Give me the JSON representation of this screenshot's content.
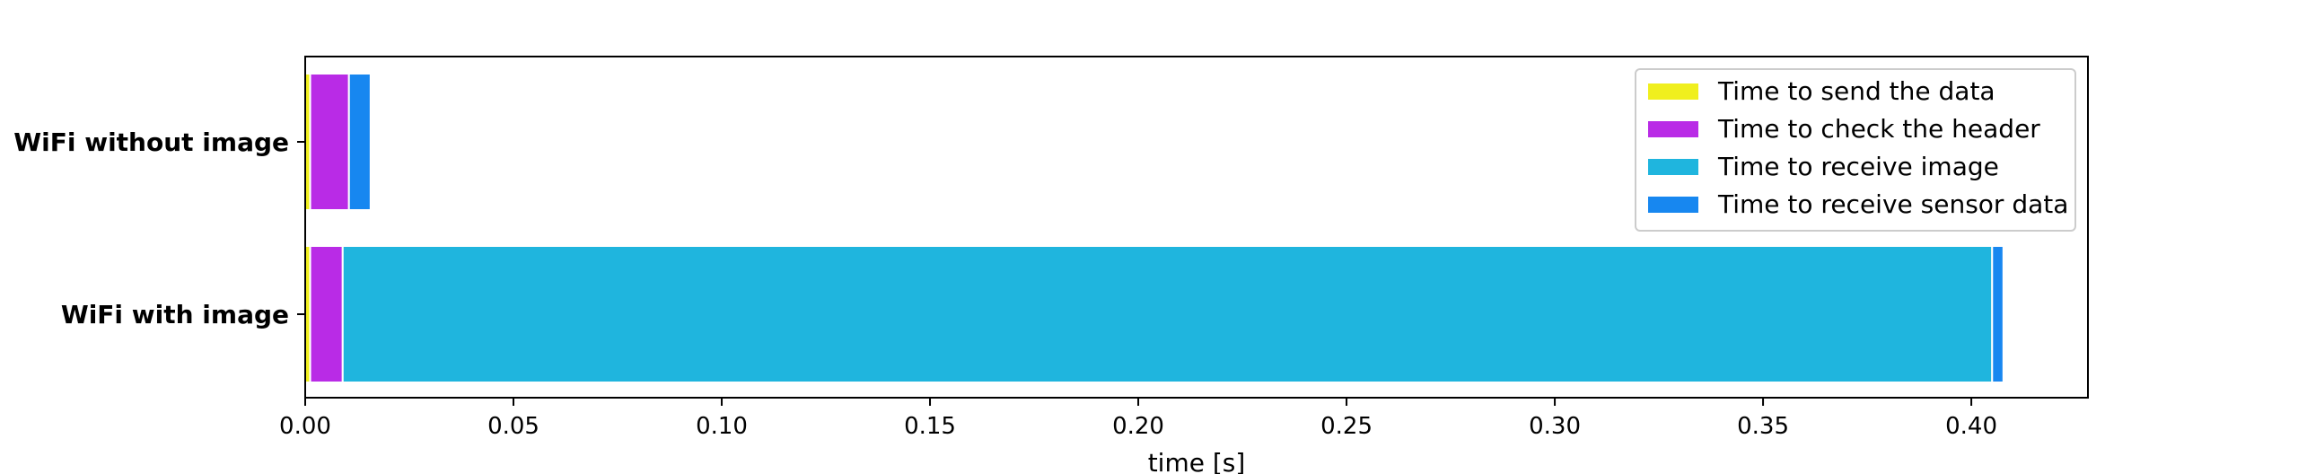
{
  "chart_data": {
    "type": "bar",
    "orientation": "horizontal",
    "stacked": true,
    "title": "",
    "xlabel": "time [s]",
    "ylabel": "",
    "xlim": [
      0,
      0.428
    ],
    "x_ticks": [
      "0.00",
      "0.05",
      "0.10",
      "0.15",
      "0.20",
      "0.25",
      "0.30",
      "0.35",
      "0.40"
    ],
    "x_tick_values": [
      0.0,
      0.05,
      0.1,
      0.15,
      0.2,
      0.25,
      0.3,
      0.35,
      0.4
    ],
    "categories": [
      "WiFi without image",
      "WiFi with image"
    ],
    "grid": false,
    "legend_position": "top-right",
    "series": [
      {
        "name": "Time to send the data",
        "color": "#f0ef1e",
        "values": [
          0.0012,
          0.0012
        ]
      },
      {
        "name": "Time to check the header",
        "color": "#b92be6",
        "values": [
          0.0093,
          0.0078
        ]
      },
      {
        "name": "Time to receive image",
        "color": "#1fb5de",
        "values": [
          0.0,
          0.396
        ]
      },
      {
        "name": "Time to receive sensor data",
        "color": "#1787f0",
        "values": [
          0.0052,
          0.0027
        ]
      }
    ]
  }
}
